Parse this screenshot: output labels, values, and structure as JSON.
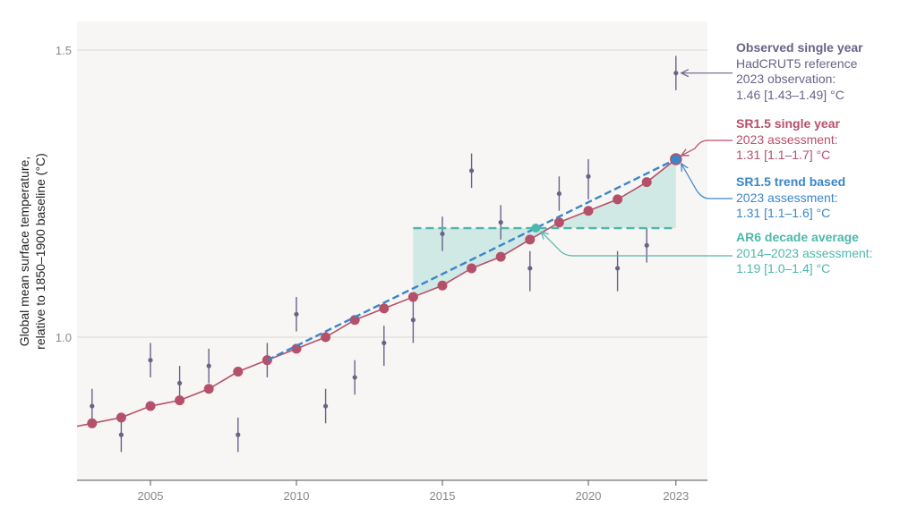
{
  "chart_data": {
    "type": "line",
    "ylabel": [
      "Global mean surface temperature,",
      "relative to 1850–1900 baseline (°C)"
    ],
    "xlim": [
      2002.5,
      2024
    ],
    "ylim": [
      0.76,
      1.5
    ],
    "x_ticks": [
      "2005",
      "2010",
      "2015",
      "2020",
      "2023"
    ],
    "y_ticks": [
      "1.0",
      "1.5"
    ],
    "grid": true,
    "colors": {
      "observed": "#6a6388",
      "sr15": "#b5506a",
      "trend": "#3a86c8",
      "ar6": "#4cb8ac",
      "ar6_fill": "#cfe8e4",
      "plot_bg": "#f7f6f4",
      "grid": "#ffffff"
    },
    "series": [
      {
        "name": "Observed single year",
        "x": [
          2003,
          2004,
          2005,
          2006,
          2007,
          2008,
          2009,
          2010,
          2011,
          2012,
          2013,
          2014,
          2015,
          2016,
          2017,
          2018,
          2019,
          2020,
          2021,
          2022,
          2023
        ],
        "y": [
          0.88,
          0.83,
          0.96,
          0.92,
          0.95,
          0.83,
          0.96,
          1.04,
          0.88,
          0.93,
          0.99,
          1.03,
          1.18,
          1.29,
          1.2,
          1.12,
          1.25,
          1.28,
          1.12,
          1.16,
          1.46
        ],
        "err_low": [
          0.85,
          0.8,
          0.93,
          0.89,
          0.92,
          0.8,
          0.93,
          1.01,
          0.85,
          0.9,
          0.95,
          0.99,
          1.15,
          1.26,
          1.17,
          1.08,
          1.22,
          1.24,
          1.08,
          1.13,
          1.43
        ],
        "err_high": [
          0.91,
          0.86,
          0.99,
          0.95,
          0.98,
          0.86,
          0.99,
          1.07,
          0.91,
          0.96,
          1.02,
          1.07,
          1.21,
          1.32,
          1.23,
          1.15,
          1.28,
          1.31,
          1.15,
          1.19,
          1.49
        ]
      },
      {
        "name": "SR1.5 single year",
        "x": [
          2003,
          2004,
          2005,
          2006,
          2007,
          2008,
          2009,
          2010,
          2011,
          2012,
          2013,
          2014,
          2015,
          2016,
          2017,
          2018,
          2019,
          2020,
          2021,
          2022,
          2023
        ],
        "y": [
          0.85,
          0.86,
          0.88,
          0.89,
          0.91,
          0.94,
          0.96,
          0.98,
          1.0,
          1.03,
          1.05,
          1.07,
          1.09,
          1.12,
          1.14,
          1.17,
          1.2,
          1.22,
          1.24,
          1.27,
          1.31
        ]
      },
      {
        "name": "SR1.5 trend based",
        "x": [
          2009,
          2023
        ],
        "y": [
          0.96,
          1.31
        ]
      },
      {
        "name": "AR6 decade average",
        "x": [
          2014,
          2023
        ],
        "y": [
          1.19,
          1.19
        ]
      }
    ],
    "annotations": [
      {
        "title": "Observed single year",
        "lines": [
          "HadCRUT5 reference",
          "2023 observation:",
          "1.46 [1.43–1.49] °C"
        ]
      },
      {
        "title": "SR1.5 single year",
        "lines": [
          "2023 assessment:",
          "1.31 [1.1–1.7] °C"
        ]
      },
      {
        "title": "SR1.5 trend based",
        "lines": [
          "2023 assessment:",
          "1.31 [1.1–1.6] °C"
        ]
      },
      {
        "title": "AR6 decade average",
        "lines": [
          "2014–2023 assessment:",
          "1.19 [1.0–1.4] °C"
        ]
      }
    ]
  }
}
